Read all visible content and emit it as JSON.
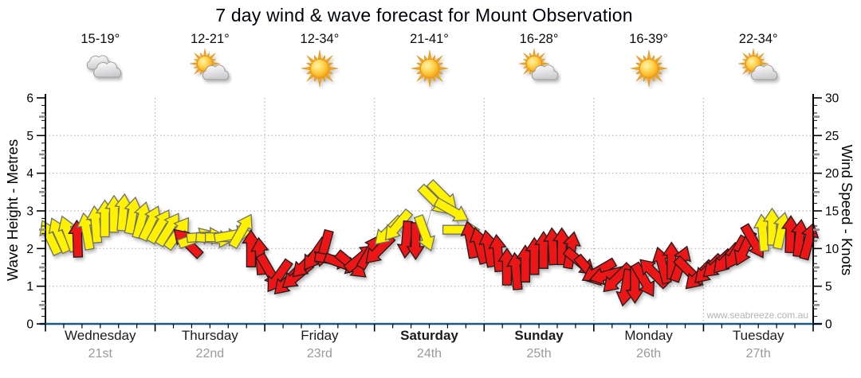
{
  "title": "7 day wind & wave forecast for Mount Observation",
  "watermark": "www.seabreeze.com.au",
  "axes": {
    "left": {
      "label": "Wave Height - Metres",
      "ticks": [
        "0",
        "1",
        "2",
        "3",
        "4",
        "5",
        "6"
      ],
      "max": 6
    },
    "right": {
      "label": "Wind Speed - Knots",
      "ticks": [
        "0",
        "5",
        "10",
        "15",
        "20",
        "25",
        "30"
      ],
      "max": 30
    }
  },
  "days": [
    {
      "name": "Wednesday",
      "date": "21st",
      "temp": "15-19°",
      "icon": "clouds",
      "weekend": false
    },
    {
      "name": "Thursday",
      "date": "22nd",
      "temp": "12-21°",
      "icon": "sun-cloud",
      "weekend": false
    },
    {
      "name": "Friday",
      "date": "23rd",
      "temp": "12-34°",
      "icon": "sun",
      "weekend": false
    },
    {
      "name": "Saturday",
      "date": "24th",
      "temp": "21-41°",
      "icon": "sun",
      "weekend": true
    },
    {
      "name": "Sunday",
      "date": "25th",
      "temp": "16-28°",
      "icon": "sun-cloud",
      "weekend": true
    },
    {
      "name": "Monday",
      "date": "26th",
      "temp": "16-39°",
      "icon": "sun",
      "weekend": false
    },
    {
      "name": "Tuesday",
      "date": "27th",
      "temp": "22-34°",
      "icon": "sun-cloud",
      "weekend": false
    }
  ],
  "colors": {
    "arrow_yellow": "#FFF200",
    "arrow_red": "#EC1212",
    "axis_bottom_blue": "#1d5a86",
    "grid_gray": "#b5b5b5",
    "date_gray": "#999999",
    "watermark_gray": "#b4b4b4"
  },
  "chart_data": {
    "type": "scatter",
    "title": "7 day wind & wave forecast for Mount Observation",
    "ylabel_left": "Wave Height - Metres",
    "ylim_left": [
      0,
      6
    ],
    "ylabel_right": "Wind Speed - Knots",
    "ylim_right": [
      0,
      30
    ],
    "x_categories": [
      "Wednesday 21st",
      "Thursday 22nd",
      "Friday 23rd",
      "Saturday 24th",
      "Sunday 25th",
      "Monday 26th",
      "Tuesday 27th"
    ],
    "samples_per_day": 12,
    "grid": "dotted horizontal lines at 1-5 m (5-25 kt), dotted vertical lines at day boundaries",
    "series": [
      {
        "name": "Wind speed and direction arrows (2-hourly)",
        "unit": "knots",
        "values": [
          11.5,
          11.8,
          12,
          11.3,
          12.3,
          13.2,
          14,
          14.6,
          14.8,
          14.4,
          13.8,
          13.4,
          13,
          12.6,
          12.1,
          10.8,
          11.4,
          11.6,
          11.3,
          11.5,
          11.8,
          12.4,
          10,
          9,
          7,
          6.3,
          5.7,
          6.4,
          8,
          9.2,
          10,
          8.5,
          8,
          7.8,
          8.8,
          9.6,
          9.8,
          12.3,
          13,
          11.2,
          11,
          12,
          16.4,
          17,
          15,
          12.5,
          11.2,
          10.4,
          10,
          9.4,
          7.6,
          7,
          8,
          9,
          9.8,
          10.3,
          10.3,
          9.8,
          8.2,
          7,
          7,
          6.5,
          6,
          4.8,
          5.2,
          5.8,
          6.8,
          7.8,
          8.4,
          8,
          6.9,
          6.4,
          7.2,
          7.9,
          8.6,
          9.4,
          10,
          10.9,
          12.1,
          12.9,
          12.4,
          11.9,
          11.4,
          11
        ],
        "directions_deg": [
          335,
          336,
          340,
          358,
          350,
          355,
          0,
          0,
          5,
          10,
          15,
          25,
          30,
          32,
          35,
          315,
          70,
          85,
          95,
          90,
          80,
          30,
          0,
          355,
          150,
          215,
          225,
          230,
          225,
          215,
          195,
          100,
          110,
          130,
          50,
          30,
          225,
          225,
          220,
          185,
          180,
          160,
          135,
          135,
          120,
          90,
          350,
          345,
          350,
          355,
          0,
          355,
          0,
          0,
          0,
          357,
          0,
          10,
          130,
          140,
          240,
          255,
          225,
          190,
          180,
          150,
          315,
          345,
          0,
          20,
          135,
          225,
          225,
          228,
          222,
          210,
          205,
          150,
          355,
          0,
          12,
          2,
          6,
          15
        ],
        "colors": [
          "y",
          "y",
          "y",
          "r",
          "y",
          "y",
          "y",
          "y",
          "y",
          "y",
          "y",
          "y",
          "y",
          "y",
          "y",
          "r",
          "y",
          "y",
          "y",
          "y",
          "y",
          "y",
          "r",
          "r",
          "r",
          "r",
          "r",
          "r",
          "r",
          "r",
          "r",
          "r",
          "r",
          "r",
          "r",
          "r",
          "r",
          "y",
          "y",
          "r",
          "r",
          "y",
          "y",
          "y",
          "y",
          "y",
          "r",
          "r",
          "r",
          "r",
          "r",
          "r",
          "r",
          "r",
          "r",
          "r",
          "r",
          "r",
          "r",
          "r",
          "r",
          "r",
          "r",
          "r",
          "r",
          "r",
          "r",
          "r",
          "r",
          "r",
          "r",
          "r",
          "r",
          "r",
          "r",
          "r",
          "r",
          "r",
          "y",
          "y",
          "y",
          "r",
          "r",
          "r"
        ]
      }
    ]
  }
}
